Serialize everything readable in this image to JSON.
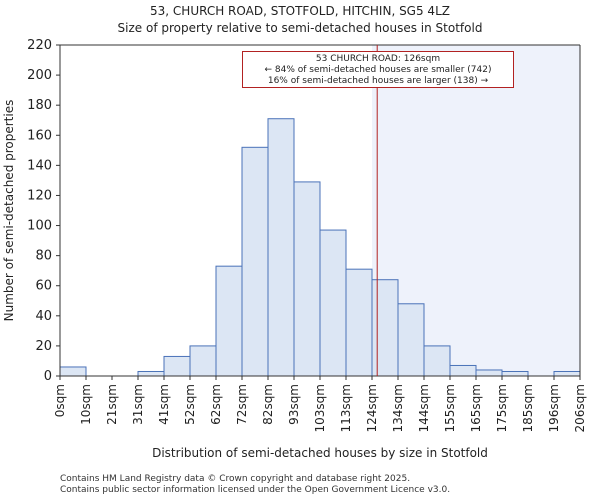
{
  "title": {
    "line1": "53, CHURCH ROAD, STOTFOLD, HITCHIN, SG5 4LZ",
    "line2": "Size of property relative to semi-detached houses in Stotfold"
  },
  "annotation": {
    "line1": "53 CHURCH ROAD: 126sqm",
    "line2": "← 84% of semi-detached houses are smaller (742)",
    "line3": "16% of semi-detached houses are larger (138) →"
  },
  "footer": {
    "line1": "Contains HM Land Registry data © Crown copyright and database right 2025.",
    "line2": "Contains public sector information licensed under the Open Government Licence v3.0."
  },
  "colors": {
    "bar_fill": "#dce6f4",
    "bar_stroke": "#4a72b8",
    "marker": "#b22222",
    "highlight": "#eef2fb"
  },
  "chart_data": {
    "type": "bar",
    "title": "Size of property relative to semi-detached houses in Stotfold",
    "xlabel": "Distribution of semi-detached houses by size in Stotfold",
    "ylabel": "Number of semi-detached properties",
    "ylim": [
      0,
      220
    ],
    "yticks": [
      0,
      20,
      40,
      60,
      80,
      100,
      120,
      140,
      160,
      180,
      200,
      220
    ],
    "tick_labels": [
      "0sqm",
      "10sqm",
      "21sqm",
      "31sqm",
      "41sqm",
      "52sqm",
      "62sqm",
      "72sqm",
      "82sqm",
      "93sqm",
      "103sqm",
      "113sqm",
      "124sqm",
      "134sqm",
      "144sqm",
      "155sqm",
      "165sqm",
      "175sqm",
      "185sqm",
      "196sqm",
      "206sqm"
    ],
    "values": [
      6,
      0,
      0,
      3,
      13,
      20,
      73,
      152,
      171,
      129,
      97,
      71,
      64,
      48,
      20,
      7,
      4,
      3,
      0,
      3
    ],
    "marker_value_sqm": 126,
    "highlight_from_bin": 12
  }
}
